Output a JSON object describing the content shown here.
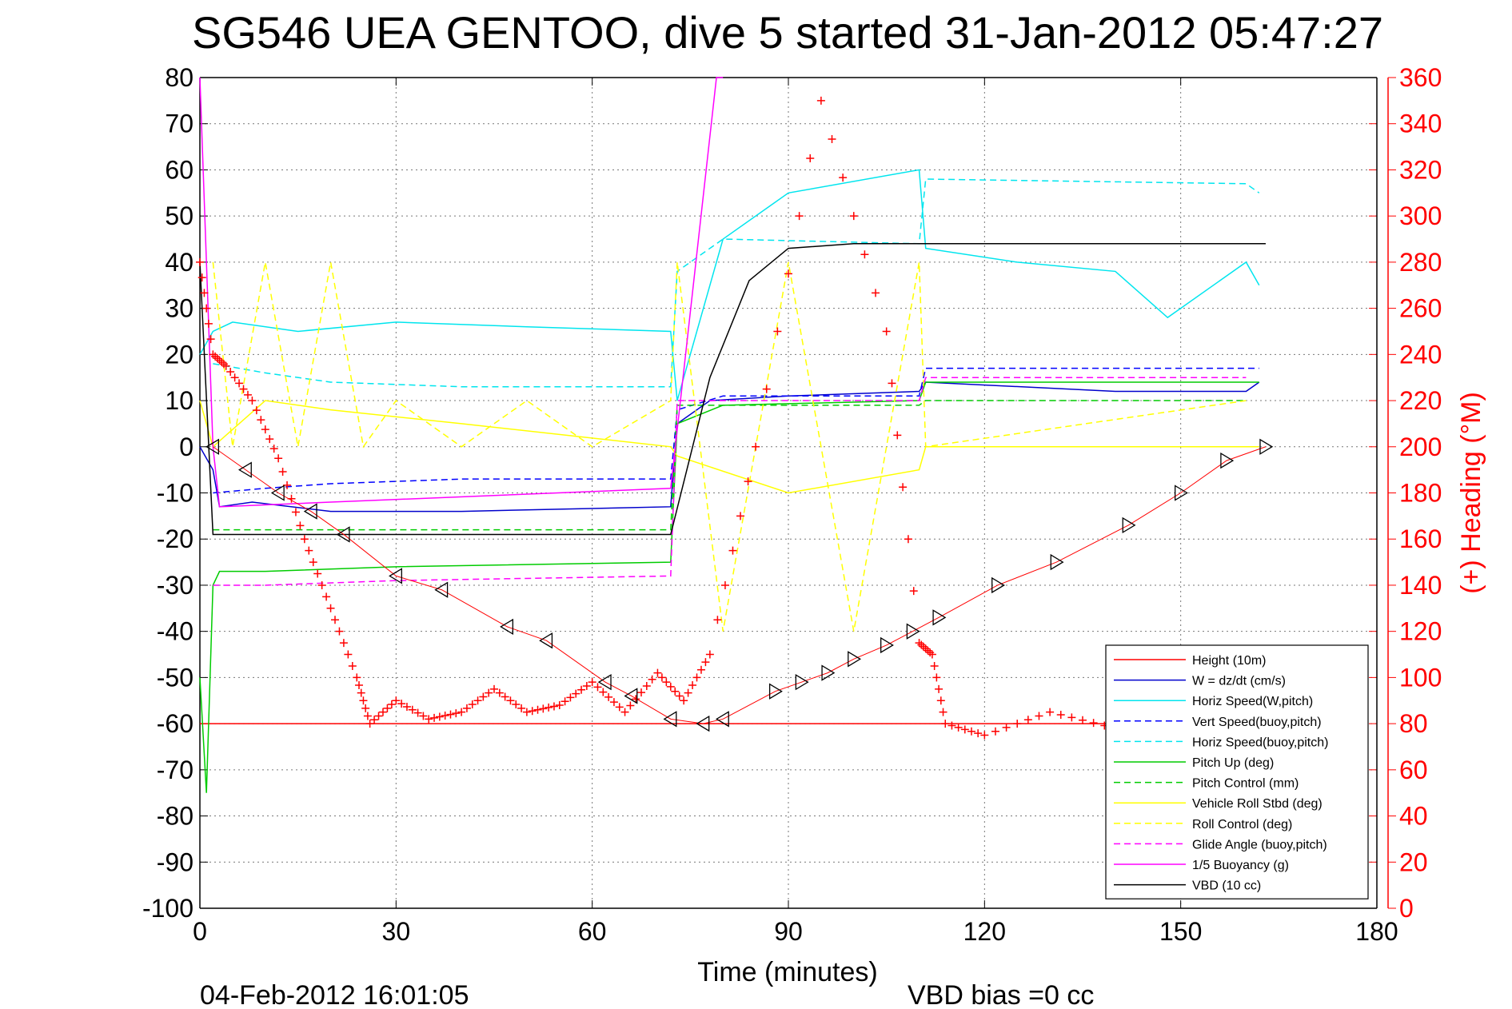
{
  "chart_data": {
    "type": "line",
    "title": "SG546 UEA GENTOO, dive 5 started 31-Jan-2012 05:47:27",
    "xlabel": "Time (minutes)",
    "ylabel_right": "(+) Heading (°M)",
    "xlim": [
      0,
      180
    ],
    "ylim_left": [
      -100,
      80
    ],
    "ylim_right": [
      0,
      360
    ],
    "x_ticks": [
      "0",
      "30",
      "60",
      "90",
      "120",
      "150",
      "180"
    ],
    "y_ticks_left": [
      "80",
      "70",
      "60",
      "50",
      "40",
      "30",
      "20",
      "10",
      "0",
      "-10",
      "-20",
      "-30",
      "-40",
      "-50",
      "-60",
      "-70",
      "-80",
      "-90",
      "-100"
    ],
    "y_ticks_right": [
      "360",
      "340",
      "320",
      "300",
      "280",
      "260",
      "240",
      "220",
      "200",
      "180",
      "160",
      "140",
      "120",
      "100",
      "80",
      "60",
      "40",
      "20",
      "0"
    ],
    "grid": true,
    "legend_position": "bottom-right",
    "footer_date": "04-Feb-2012 16:01:05",
    "footer_bias": "VBD bias =0 cc",
    "series": [
      {
        "name": "Height (10m)",
        "color": "#ff0000",
        "style": "solid",
        "axis": "left",
        "x": [
          0,
          160
        ],
        "y": [
          -60,
          -60
        ]
      },
      {
        "name": "W = dz/dt (cm/s)",
        "color": "#0000cc",
        "style": "solid",
        "axis": "left",
        "x": [
          0,
          2,
          3,
          8,
          20,
          40,
          72,
          73,
          78,
          90,
          110,
          111,
          140,
          160,
          162
        ],
        "y": [
          0,
          -5,
          -13,
          -12,
          -14,
          -14,
          -13,
          5,
          10,
          11,
          12,
          14,
          12,
          12,
          14
        ]
      },
      {
        "name": "Horiz Speed(W,pitch)",
        "color": "#00e5ee",
        "style": "solid",
        "axis": "left",
        "x": [
          0,
          2,
          5,
          15,
          30,
          50,
          72,
          73,
          80,
          90,
          110,
          111,
          125,
          140,
          148,
          160,
          162
        ],
        "y": [
          20,
          25,
          27,
          25,
          27,
          26,
          25,
          10,
          45,
          55,
          60,
          43,
          40,
          38,
          28,
          40,
          35
        ]
      },
      {
        "name": "Vert Speed(buoy,pitch)",
        "color": "#0000ff",
        "style": "dashed",
        "axis": "left",
        "x": [
          2,
          10,
          20,
          40,
          72,
          73,
          80,
          110,
          111,
          160,
          162
        ],
        "y": [
          -10,
          -9,
          -8,
          -7,
          -7,
          8,
          11,
          11,
          17,
          17,
          17
        ]
      },
      {
        "name": "Horiz Speed(buoy,pitch)",
        "color": "#00e5ee",
        "style": "dashed",
        "axis": "left",
        "x": [
          2,
          10,
          20,
          40,
          72,
          73,
          80,
          110,
          111,
          160,
          162
        ],
        "y": [
          18,
          16,
          14,
          13,
          13,
          38,
          45,
          44,
          58,
          57,
          55
        ]
      },
      {
        "name": "Pitch Up (deg)",
        "color": "#00cc00",
        "style": "solid",
        "axis": "left",
        "x": [
          0,
          1,
          2,
          3,
          10,
          30,
          72,
          73,
          80,
          110,
          111,
          160,
          162
        ],
        "y": [
          -50,
          -75,
          -30,
          -27,
          -27,
          -26,
          -25,
          5,
          9,
          10,
          14,
          14,
          14
        ]
      },
      {
        "name": "Pitch Control (mm)",
        "color": "#00cc00",
        "style": "dashed",
        "axis": "left",
        "x": [
          2,
          10,
          40,
          72,
          73,
          110,
          111,
          160
        ],
        "y": [
          -18,
          -18,
          -18,
          -18,
          9,
          9,
          10,
          10
        ]
      },
      {
        "name": "Vehicle Roll Stbd (deg)",
        "color": "#ffff00",
        "style": "solid",
        "axis": "left",
        "x": [
          0,
          2,
          10,
          20,
          40,
          72,
          73,
          90,
          110,
          111,
          160,
          162
        ],
        "y": [
          10,
          0,
          10,
          8,
          5,
          0,
          -2,
          -10,
          -5,
          0,
          0,
          0
        ]
      },
      {
        "name": "Roll Control (deg)",
        "color": "#ffff00",
        "style": "dashed",
        "axis": "left",
        "x": [
          2,
          5,
          10,
          15,
          20,
          25,
          30,
          40,
          50,
          60,
          72,
          73,
          80,
          90,
          100,
          110,
          111,
          160
        ],
        "y": [
          40,
          0,
          40,
          0,
          40,
          0,
          10,
          0,
          10,
          0,
          10,
          40,
          -40,
          40,
          -40,
          40,
          0,
          10
        ]
      },
      {
        "name": "Glide Angle (buoy,pitch)",
        "color": "#ff00ff",
        "style": "dashed",
        "axis": "left",
        "x": [
          2,
          10,
          30,
          72,
          73,
          110,
          111,
          160
        ],
        "y": [
          -30,
          -30,
          -29,
          -28,
          10,
          10,
          15,
          15
        ]
      },
      {
        "name": "1/5 Buoyancy (g)",
        "color": "#ff00ff",
        "style": "solid",
        "axis": "left",
        "x": [
          0,
          2,
          3,
          20,
          72,
          79,
          80
        ],
        "y": [
          80,
          0,
          -13,
          -12,
          -9,
          80,
          80
        ]
      },
      {
        "name": "VBD (10 cc)",
        "color": "#000000",
        "style": "solid",
        "axis": "left",
        "x": [
          0,
          2,
          72,
          78,
          84,
          90,
          100,
          163
        ],
        "y": [
          40,
          -19,
          -19,
          15,
          36,
          43,
          44,
          44
        ]
      },
      {
        "name": "",
        "color": "#ff0000",
        "style": "markers-plus",
        "axis": "right",
        "x": [
          0,
          2,
          4,
          8,
          12,
          16,
          20,
          24,
          26,
          30,
          35,
          40,
          45,
          50,
          55,
          60,
          65,
          70,
          74,
          78,
          85,
          95,
          105,
          110,
          112,
          114,
          120,
          130,
          140
        ],
        "y": [
          280,
          240,
          235,
          220,
          195,
          160,
          130,
          100,
          80,
          90,
          82,
          85,
          95,
          85,
          88,
          98,
          85,
          102,
          90,
          110,
          200,
          350,
          250,
          115,
          110,
          80,
          75,
          85,
          78
        ]
      },
      {
        "name": "",
        "color": "#000000",
        "style": "markers-triangle",
        "axis": "left",
        "x": [
          2,
          7,
          12,
          17,
          22,
          30,
          37,
          47,
          53,
          62,
          66,
          72,
          77,
          80,
          88,
          92,
          96,
          100,
          105,
          109,
          113,
          122,
          131,
          142,
          150,
          157,
          163
        ],
        "y": [
          0,
          -5,
          -10,
          -14,
          -19,
          -28,
          -31,
          -39,
          -42,
          -51,
          -54,
          -59,
          -60,
          -59,
          -53,
          -51,
          -49,
          -46,
          -43,
          -40,
          -37,
          -30,
          -25,
          -17,
          -10,
          -3,
          0
        ]
      }
    ]
  }
}
